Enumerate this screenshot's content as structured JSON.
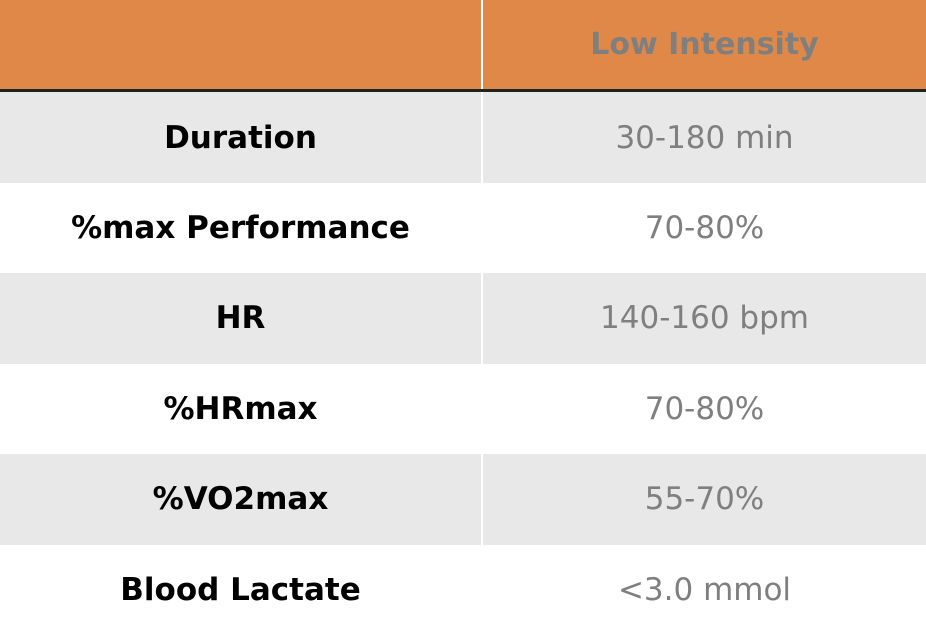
{
  "table": {
    "header": {
      "column": "Low Intensity"
    },
    "rows": [
      [
        "Duration",
        "30-180 min"
      ],
      [
        "%max Performance",
        "70-80%"
      ],
      [
        "HR",
        "140-160 bpm"
      ],
      [
        "%HRmax",
        "70-80%"
      ],
      [
        "%VO2max",
        "55-70%"
      ],
      [
        "Blood Lactate",
        "<3.0 mmol"
      ]
    ]
  }
}
